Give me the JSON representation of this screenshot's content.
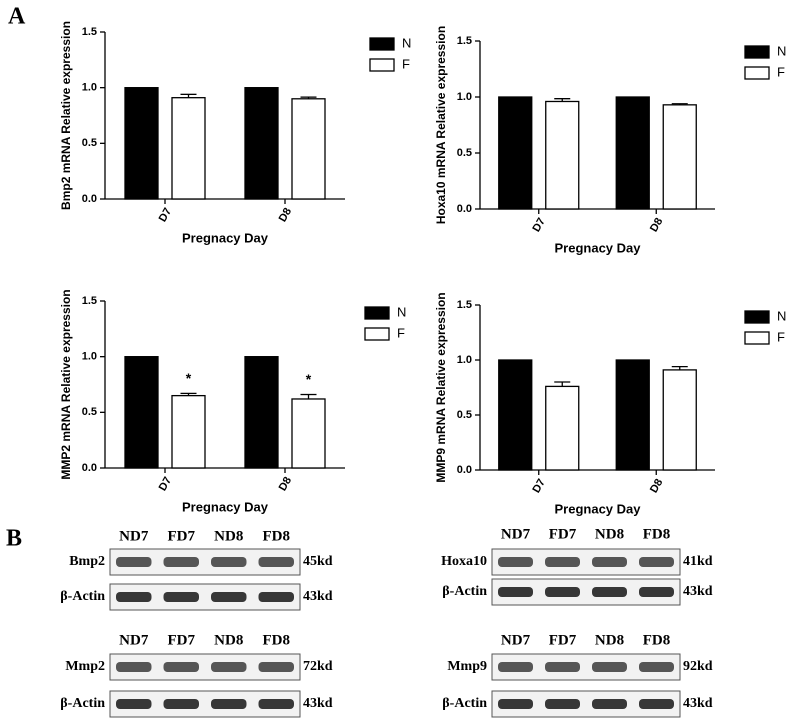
{
  "panels": [
    "A",
    "B"
  ],
  "chart_data": [
    {
      "type": "bar",
      "ylabel": "Bmp2 mRNA Relative expression",
      "xlabel": "Pregnacy Day",
      "categories": [
        "D7",
        "D8"
      ],
      "series": [
        {
          "name": "N",
          "color": "#000000",
          "values": [
            1,
            1
          ]
        },
        {
          "name": "F",
          "color": "#ffffff",
          "values": [
            0.91,
            0.9
          ],
          "errors": [
            0.03,
            0.015
          ]
        }
      ],
      "ylim": [
        0,
        1.5
      ],
      "yticks": [
        {
          "value": 0,
          "label": "0.0"
        },
        0.5,
        {
          "value": 1,
          "label": "1.0"
        },
        1.5
      ]
    },
    {
      "type": "bar",
      "ylabel": "Hoxa10 mRNA Relative expression",
      "xlabel": "Pregnacy Day",
      "categories": [
        "D7",
        "D8"
      ],
      "series": [
        {
          "name": "N",
          "color": "#000000",
          "values": [
            1,
            1
          ]
        },
        {
          "name": "F",
          "color": "#ffffff",
          "values": [
            0.96,
            0.93
          ],
          "errors": [
            0.025,
            0.01
          ]
        }
      ],
      "ylim": [
        0,
        1.5
      ],
      "yticks": [
        {
          "value": 0,
          "label": "0.0"
        },
        0.5,
        {
          "value": 1,
          "label": "1.0"
        },
        1.5
      ]
    },
    {
      "type": "bar",
      "ylabel": "MMP2 mRNA Relative expression",
      "xlabel": "Pregnacy Day",
      "categories": [
        "D7",
        "D8"
      ],
      "series": [
        {
          "name": "N",
          "color": "#000000",
          "values": [
            1,
            1
          ]
        },
        {
          "name": "F",
          "color": "#ffffff",
          "values": [
            0.65,
            0.62
          ],
          "errors": [
            0.02,
            0.04
          ],
          "annotations": [
            "*",
            "*"
          ]
        }
      ],
      "ylim": [
        0,
        1.5
      ],
      "yticks": [
        {
          "value": 0,
          "label": "0.0"
        },
        0.5,
        {
          "value": 1,
          "label": "1.0"
        },
        1.5
      ]
    },
    {
      "type": "bar",
      "ylabel": "MMP9 mRNA Relative expression",
      "xlabel": "Pregnacy Day",
      "categories": [
        "D7",
        "D8"
      ],
      "series": [
        {
          "name": "N",
          "color": "#000000",
          "values": [
            1,
            1
          ]
        },
        {
          "name": "F",
          "color": "#ffffff",
          "values": [
            0.76,
            0.91
          ],
          "errors": [
            0.04,
            0.03
          ]
        }
      ],
      "ylim": [
        0,
        1.5
      ],
      "yticks": [
        {
          "value": 0,
          "label": "0.0"
        },
        0.5,
        {
          "value": 1,
          "label": "1.0"
        },
        1.5
      ]
    }
  ],
  "blots": [
    {
      "lanes": [
        "ND7",
        "FD7",
        "ND8",
        "FD8"
      ],
      "rows": [
        {
          "label": "Bmp2",
          "size": "45kd"
        },
        {
          "label": "β-Actin",
          "size": "43kd"
        }
      ]
    },
    {
      "lanes": [
        "ND7",
        "FD7",
        "ND8",
        "FD8"
      ],
      "rows": [
        {
          "label": "Hoxa10",
          "size": "41kd"
        },
        {
          "label": "β-Actin",
          "size": "43kd"
        }
      ]
    },
    {
      "lanes": [
        "ND7",
        "FD7",
        "ND8",
        "FD8"
      ],
      "rows": [
        {
          "label": "Mmp2",
          "size": "72kd"
        },
        {
          "label": "β-Actin",
          "size": "43kd"
        }
      ]
    },
    {
      "lanes": [
        "ND7",
        "FD7",
        "ND8",
        "FD8"
      ],
      "rows": [
        {
          "label": "Mmp9",
          "size": "92kd"
        },
        {
          "label": "β-Actin",
          "size": "43kd"
        }
      ]
    }
  ]
}
